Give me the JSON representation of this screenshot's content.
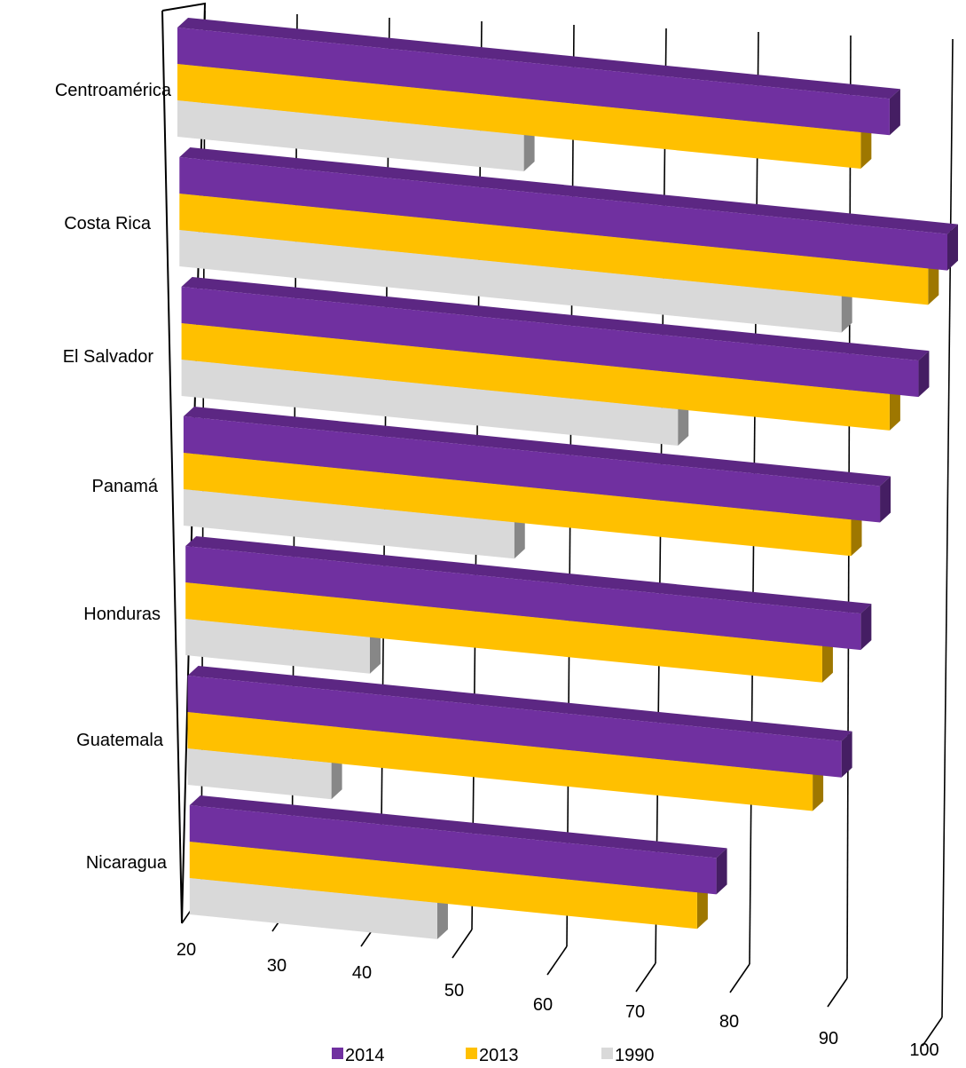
{
  "chart_data": {
    "type": "bar",
    "orientation": "horizontal",
    "style": "3d",
    "title": "",
    "xlabel": "",
    "ylabel": "",
    "xlim": [
      20,
      100
    ],
    "x_ticks": [
      "20",
      "30",
      "40",
      "50",
      "60",
      "70",
      "80",
      "90",
      "100"
    ],
    "grid": true,
    "legend_position": "bottom",
    "categories": [
      "Centroamérica",
      "Costa Rica",
      "El Salvador",
      "Panamá",
      "Honduras",
      "Guatemala",
      "Nicaragua"
    ],
    "series": [
      {
        "name": "2014",
        "color": "#7030a0",
        "values": [
          94,
          100,
          97,
          93,
          91,
          89,
          76
        ]
      },
      {
        "name": "2013",
        "color": "#ffc000",
        "values": [
          91,
          98,
          94,
          90,
          87,
          86,
          74
        ]
      },
      {
        "name": "1990",
        "color": "#d9d9d9",
        "values": [
          56,
          89,
          72,
          55,
          40,
          36,
          47
        ]
      }
    ]
  }
}
